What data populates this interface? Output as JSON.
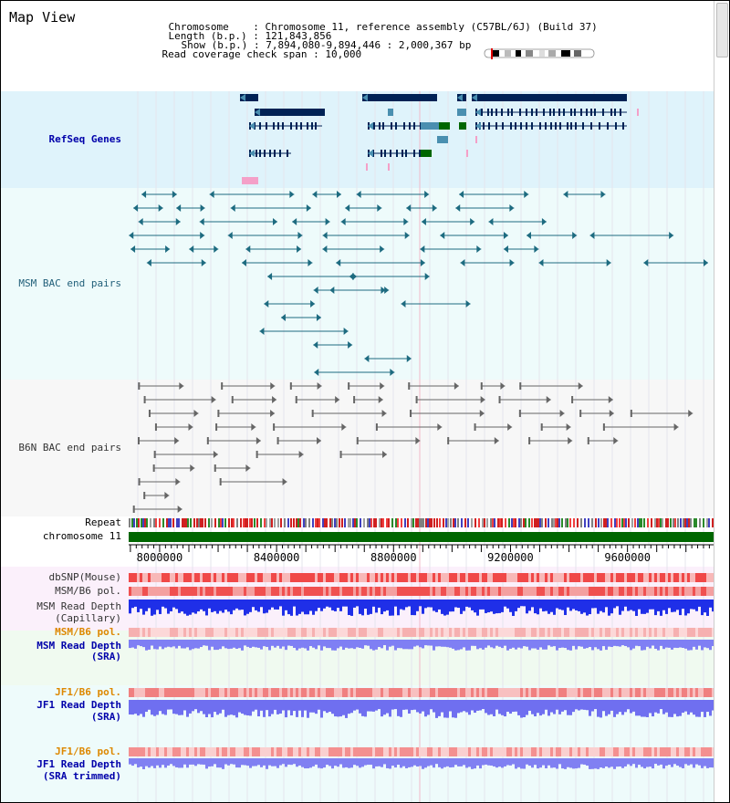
{
  "page": {
    "title": "Map View"
  },
  "info": {
    "chromosome_label": "Chromosome",
    "chromosome_value": "Chromosome 11, reference assembly (C57BL/6J) (Build 37)",
    "length_label": "Length (b.p.)",
    "length_value": "121,843,856",
    "show_label": "Show (b.p.)",
    "show_value": "7,894,080-9,894,446 : 2,000,367 bp",
    "coverage_label": "Read coverage check span",
    "coverage_value": "10,000",
    "separator": ":"
  },
  "tracks": {
    "refseq": "RefSeq Genes",
    "msm_bac": "MSM BAC end pairs",
    "b6n_bac": "B6N BAC end pairs",
    "repeat": "Repeat",
    "chromosome": "chromosome 11",
    "dbsnp": "dbSNP(Mouse)",
    "msm_b6_pol": "MSM/B6 pol.",
    "msm_read_depth_cap_1": "MSM Read Depth",
    "msm_read_depth_cap_2": "(Capillary)",
    "msm_b6_pol_sra": "MSM/B6 pol.",
    "msm_read_depth_sra_1": "MSM Read Depth",
    "msm_read_depth_sra_2": "(SRA)",
    "jf1_b6_pol": "JF1/B6 pol.",
    "jf1_read_depth_sra_1": "JF1 Read Depth",
    "jf1_read_depth_sra_2": "(SRA)",
    "jf1_b6_pol_2": "JF1/B6 pol.",
    "jf1_read_depth_trim_1": "JF1 Read Depth",
    "jf1_read_depth_trim_2": "(SRA trimmed)"
  },
  "ruler": {
    "ticks": [
      "8000000",
      "8400000",
      "8800000",
      "9200000",
      "9600000"
    ],
    "tick_values": [
      8000000,
      8400000,
      8800000,
      9200000,
      9600000
    ],
    "range_start": 7894080,
    "range_end": 9894446
  },
  "colors": {
    "refseq_bg": "#dff3fb",
    "msm_bg": "#eefbfb",
    "b6n_bg": "#f7f7f7",
    "gene_dark": "#002255",
    "gene_mid": "#4a8fb0",
    "gene_green": "#006600",
    "gene_pink": "#f4a0c8",
    "msm_line": "#1d6b80",
    "b6n_line": "#666666",
    "chromosome_green": "#006600",
    "depth_blue": "#1f2fe8",
    "depth_light": "#7f7ff4",
    "snp_red": "#f04848",
    "pol_light": "#f7a0a0"
  }
}
